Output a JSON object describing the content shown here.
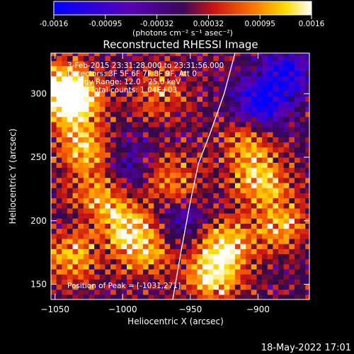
{
  "colorbar": {
    "ticks": [
      "-0.0016",
      "-0.00095",
      "-0.00032",
      "0.00032",
      "0.00095",
      "0.0016"
    ],
    "unit_label": "(photons cm⁻² s⁻¹ asec⁻²)"
  },
  "chart_data": {
    "type": "heatmap",
    "title": "Reconstructed RHESSI Image",
    "xlabel": "Heliocentric X (arcsec)",
    "ylabel": "Heliocentric Y (arcsec)",
    "xlim": [
      -1053,
      -862
    ],
    "ylim": [
      138,
      332
    ],
    "xticks": [
      -1050,
      -1000,
      -950,
      -900
    ],
    "yticks": [
      150,
      200,
      250,
      300
    ],
    "value_range": [
      -0.0016,
      0.0016
    ],
    "colormap": "blue-purple-red-yellow-white",
    "annotations": [
      "3-Feb-2015 23:31:28.000 to 23:31:56.000",
      "Detectors: 3F 5F 6F 7F 8F 9F, Att 0",
      "Energy Range: 12.0 - 25.0 keV",
      "Clean     Total counts: 1.04E+03"
    ],
    "peak_label": "Position of Peak = [-1031,271]",
    "limb_curve": [
      [
        -963,
        138
      ],
      [
        -957,
        175
      ],
      [
        -950,
        215
      ],
      [
        -944,
        245
      ],
      [
        -935,
        270
      ],
      [
        -925,
        300
      ],
      [
        -917,
        332
      ]
    ],
    "hot_spots": [
      {
        "x": -1038,
        "y": 290,
        "level": 1.0
      },
      {
        "x": -1045,
        "y": 305,
        "level": 0.9
      },
      {
        "x": -1030,
        "y": 255,
        "level": 0.75
      },
      {
        "x": -1020,
        "y": 220,
        "level": 0.7
      },
      {
        "x": -1040,
        "y": 170,
        "level": 0.75
      },
      {
        "x": -1000,
        "y": 195,
        "level": 0.8
      },
      {
        "x": -985,
        "y": 175,
        "level": 0.7
      },
      {
        "x": -965,
        "y": 230,
        "level": 0.65
      },
      {
        "x": -935,
        "y": 155,
        "level": 1.0
      },
      {
        "x": -925,
        "y": 180,
        "level": 0.85
      },
      {
        "x": -900,
        "y": 230,
        "level": 0.85
      },
      {
        "x": -885,
        "y": 195,
        "level": 0.75
      },
      {
        "x": -910,
        "y": 260,
        "level": 0.6
      },
      {
        "x": -975,
        "y": 300,
        "level": 0.55
      }
    ],
    "cold_spots": [
      {
        "x": -900,
        "y": 290,
        "level": -0.9
      },
      {
        "x": -880,
        "y": 315,
        "level": -0.8
      },
      {
        "x": -1000,
        "y": 240,
        "level": -0.45
      },
      {
        "x": -960,
        "y": 200,
        "level": -0.4
      }
    ]
  },
  "footer_timestamp": "18-May-2022 17:01"
}
